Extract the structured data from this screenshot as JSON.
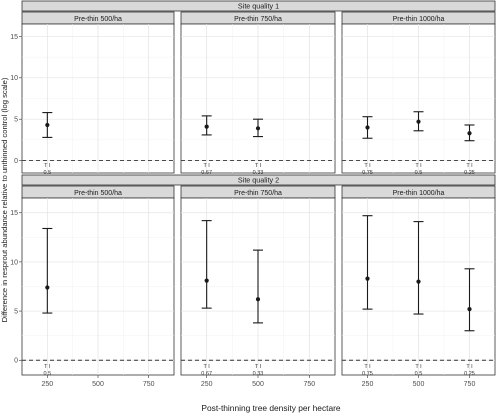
{
  "chart_data": {
    "type": "scatter",
    "xlabel": "Post-thinning tree density per hectare",
    "ylabel": "Difference in resprout abundance relative to unthinned control (log scale)",
    "xlim": [
      125,
      875
    ],
    "ylim": [
      -1.5,
      16.5
    ],
    "x_ticks": [
      250,
      500,
      750
    ],
    "y_ticks": [
      0,
      5,
      10,
      15
    ],
    "reference_line": {
      "y": 0,
      "style": "dashed"
    },
    "grid": true,
    "rows": [
      {
        "strip_label": "Site quality 1",
        "panels": [
          {
            "strip_label": "Pre-thin 500/ha",
            "points": [
              {
                "x": 250,
                "y": 4.3,
                "lower": 2.8,
                "upper": 5.8,
                "ti_label": "T I",
                "ratio": "0.5"
              }
            ]
          },
          {
            "strip_label": "Pre-thin 750/ha",
            "points": [
              {
                "x": 250,
                "y": 4.1,
                "lower": 3.1,
                "upper": 5.4,
                "ti_label": "T I",
                "ratio": "0.67"
              },
              {
                "x": 500,
                "y": 3.9,
                "lower": 2.9,
                "upper": 5.0,
                "ti_label": "T I",
                "ratio": "0.33"
              }
            ]
          },
          {
            "strip_label": "Pre-thin 1000/ha",
            "points": [
              {
                "x": 250,
                "y": 4.0,
                "lower": 2.7,
                "upper": 5.3,
                "ti_label": "T I",
                "ratio": "0.75"
              },
              {
                "x": 500,
                "y": 4.7,
                "lower": 3.6,
                "upper": 5.9,
                "ti_label": "T I",
                "ratio": "0.5"
              },
              {
                "x": 750,
                "y": 3.3,
                "lower": 2.4,
                "upper": 4.3,
                "ti_label": "T I",
                "ratio": "0.25"
              }
            ]
          }
        ]
      },
      {
        "strip_label": "Site quality 2",
        "panels": [
          {
            "strip_label": "Pre-thin 500/ha",
            "points": [
              {
                "x": 250,
                "y": 7.4,
                "lower": 4.8,
                "upper": 13.4,
                "ti_label": "T I",
                "ratio": "0.5"
              }
            ]
          },
          {
            "strip_label": "Pre-thin 750/ha",
            "points": [
              {
                "x": 250,
                "y": 8.1,
                "lower": 5.3,
                "upper": 14.2,
                "ti_label": "T I",
                "ratio": "0.67"
              },
              {
                "x": 500,
                "y": 6.2,
                "lower": 3.8,
                "upper": 11.2,
                "ti_label": "T I",
                "ratio": "0.33"
              }
            ]
          },
          {
            "strip_label": "Pre-thin 1000/ha",
            "points": [
              {
                "x": 250,
                "y": 8.3,
                "lower": 5.2,
                "upper": 14.7,
                "ti_label": "T I",
                "ratio": "0.75"
              },
              {
                "x": 500,
                "y": 8.0,
                "lower": 4.7,
                "upper": 14.1,
                "ti_label": "T I",
                "ratio": "0.5"
              },
              {
                "x": 750,
                "y": 5.2,
                "lower": 3.0,
                "upper": 9.3,
                "ti_label": "T I",
                "ratio": "0.25"
              }
            ]
          }
        ]
      }
    ]
  }
}
